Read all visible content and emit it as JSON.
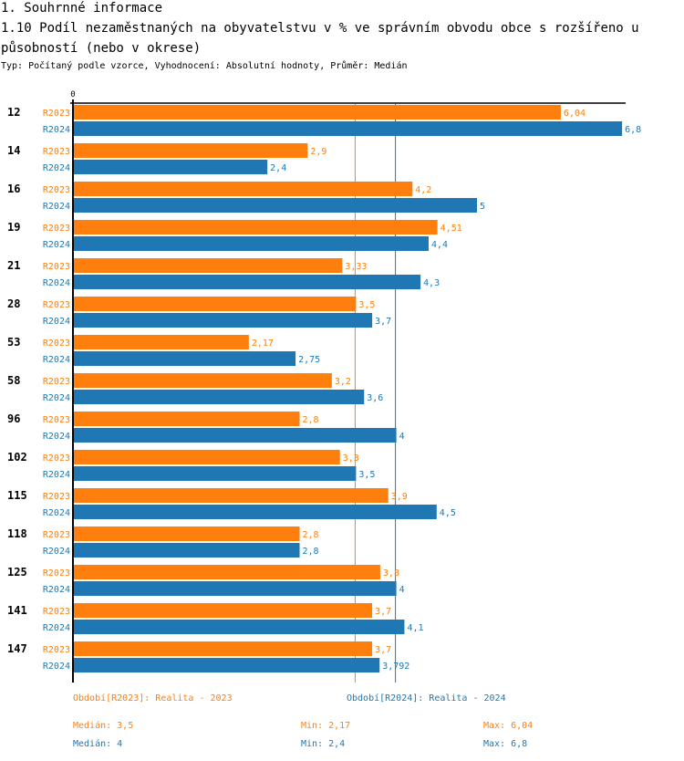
{
  "header": {
    "section": "1. Souhrnné informace",
    "title": "1.10 Podíl nezaměstnaných na obyvatelstvu v % ve správním obvodu obce s rozšířeno u působností (nebo v okrese)",
    "subtitle": "Typ: Počítaný podle vzorce, Vyhodnocení: Absolutní hodnoty, Průměr: Medián"
  },
  "colors": {
    "R2023": "#ff7f0e",
    "R2024": "#1f77b4",
    "axis": "#000000"
  },
  "chart_data": {
    "type": "bar",
    "orientation": "horizontal",
    "title": "1.10 Podíl nezaměstnaných na obyvatelstvu v % ve správním obvodu obce s rozšířenou působností (nebo v okrese)",
    "xlabel": "",
    "ylabel": "",
    "xlim": [
      0,
      6.8
    ],
    "x_tick_labels": [
      "0"
    ],
    "grid": false,
    "categories": [
      "12",
      "14",
      "16",
      "19",
      "21",
      "28",
      "53",
      "58",
      "96",
      "102",
      "115",
      "118",
      "125",
      "141",
      "147"
    ],
    "series": [
      {
        "name": "R2023",
        "values": [
          6.04,
          2.9,
          4.2,
          4.51,
          3.33,
          3.5,
          2.17,
          3.2,
          2.8,
          3.3,
          3.9,
          2.8,
          3.8,
          3.7,
          3.7
        ],
        "labels": [
          "6,04",
          "2,9",
          "4,2",
          "4,51",
          "3,33",
          "3,5",
          "2,17",
          "3,2",
          "2,8",
          "3,3",
          "3,9",
          "2,8",
          "3,8",
          "3,7",
          "3,7"
        ]
      },
      {
        "name": "R2024",
        "values": [
          6.8,
          2.4,
          5,
          4.4,
          4.3,
          3.7,
          2.75,
          3.6,
          4,
          3.5,
          4.5,
          2.8,
          4,
          4.1,
          3.792
        ],
        "labels": [
          "6,8",
          "2,4",
          "5",
          "4,4",
          "4,3",
          "3,7",
          "2,75",
          "3,6",
          "4",
          "3,5",
          "4,5",
          "2,8",
          "4",
          "4,1",
          "3,792"
        ]
      }
    ],
    "reference_lines": [
      {
        "series": "R2023",
        "type": "median",
        "value": 3.5
      },
      {
        "series": "R2024",
        "type": "median",
        "value": 4
      }
    ],
    "legend": {
      "position": "bottom",
      "entries": [
        "Období[R2023]: Realita - 2023",
        "Období[R2024]: Realita - 2024"
      ]
    },
    "stats": {
      "R2023": {
        "median": "Medián: 3,5",
        "min": "Min: 2,17",
        "max": "Max: 6,04"
      },
      "R2024": {
        "median": "Medián: 4",
        "min": "Min: 2,4",
        "max": "Max: 6,8"
      }
    }
  }
}
